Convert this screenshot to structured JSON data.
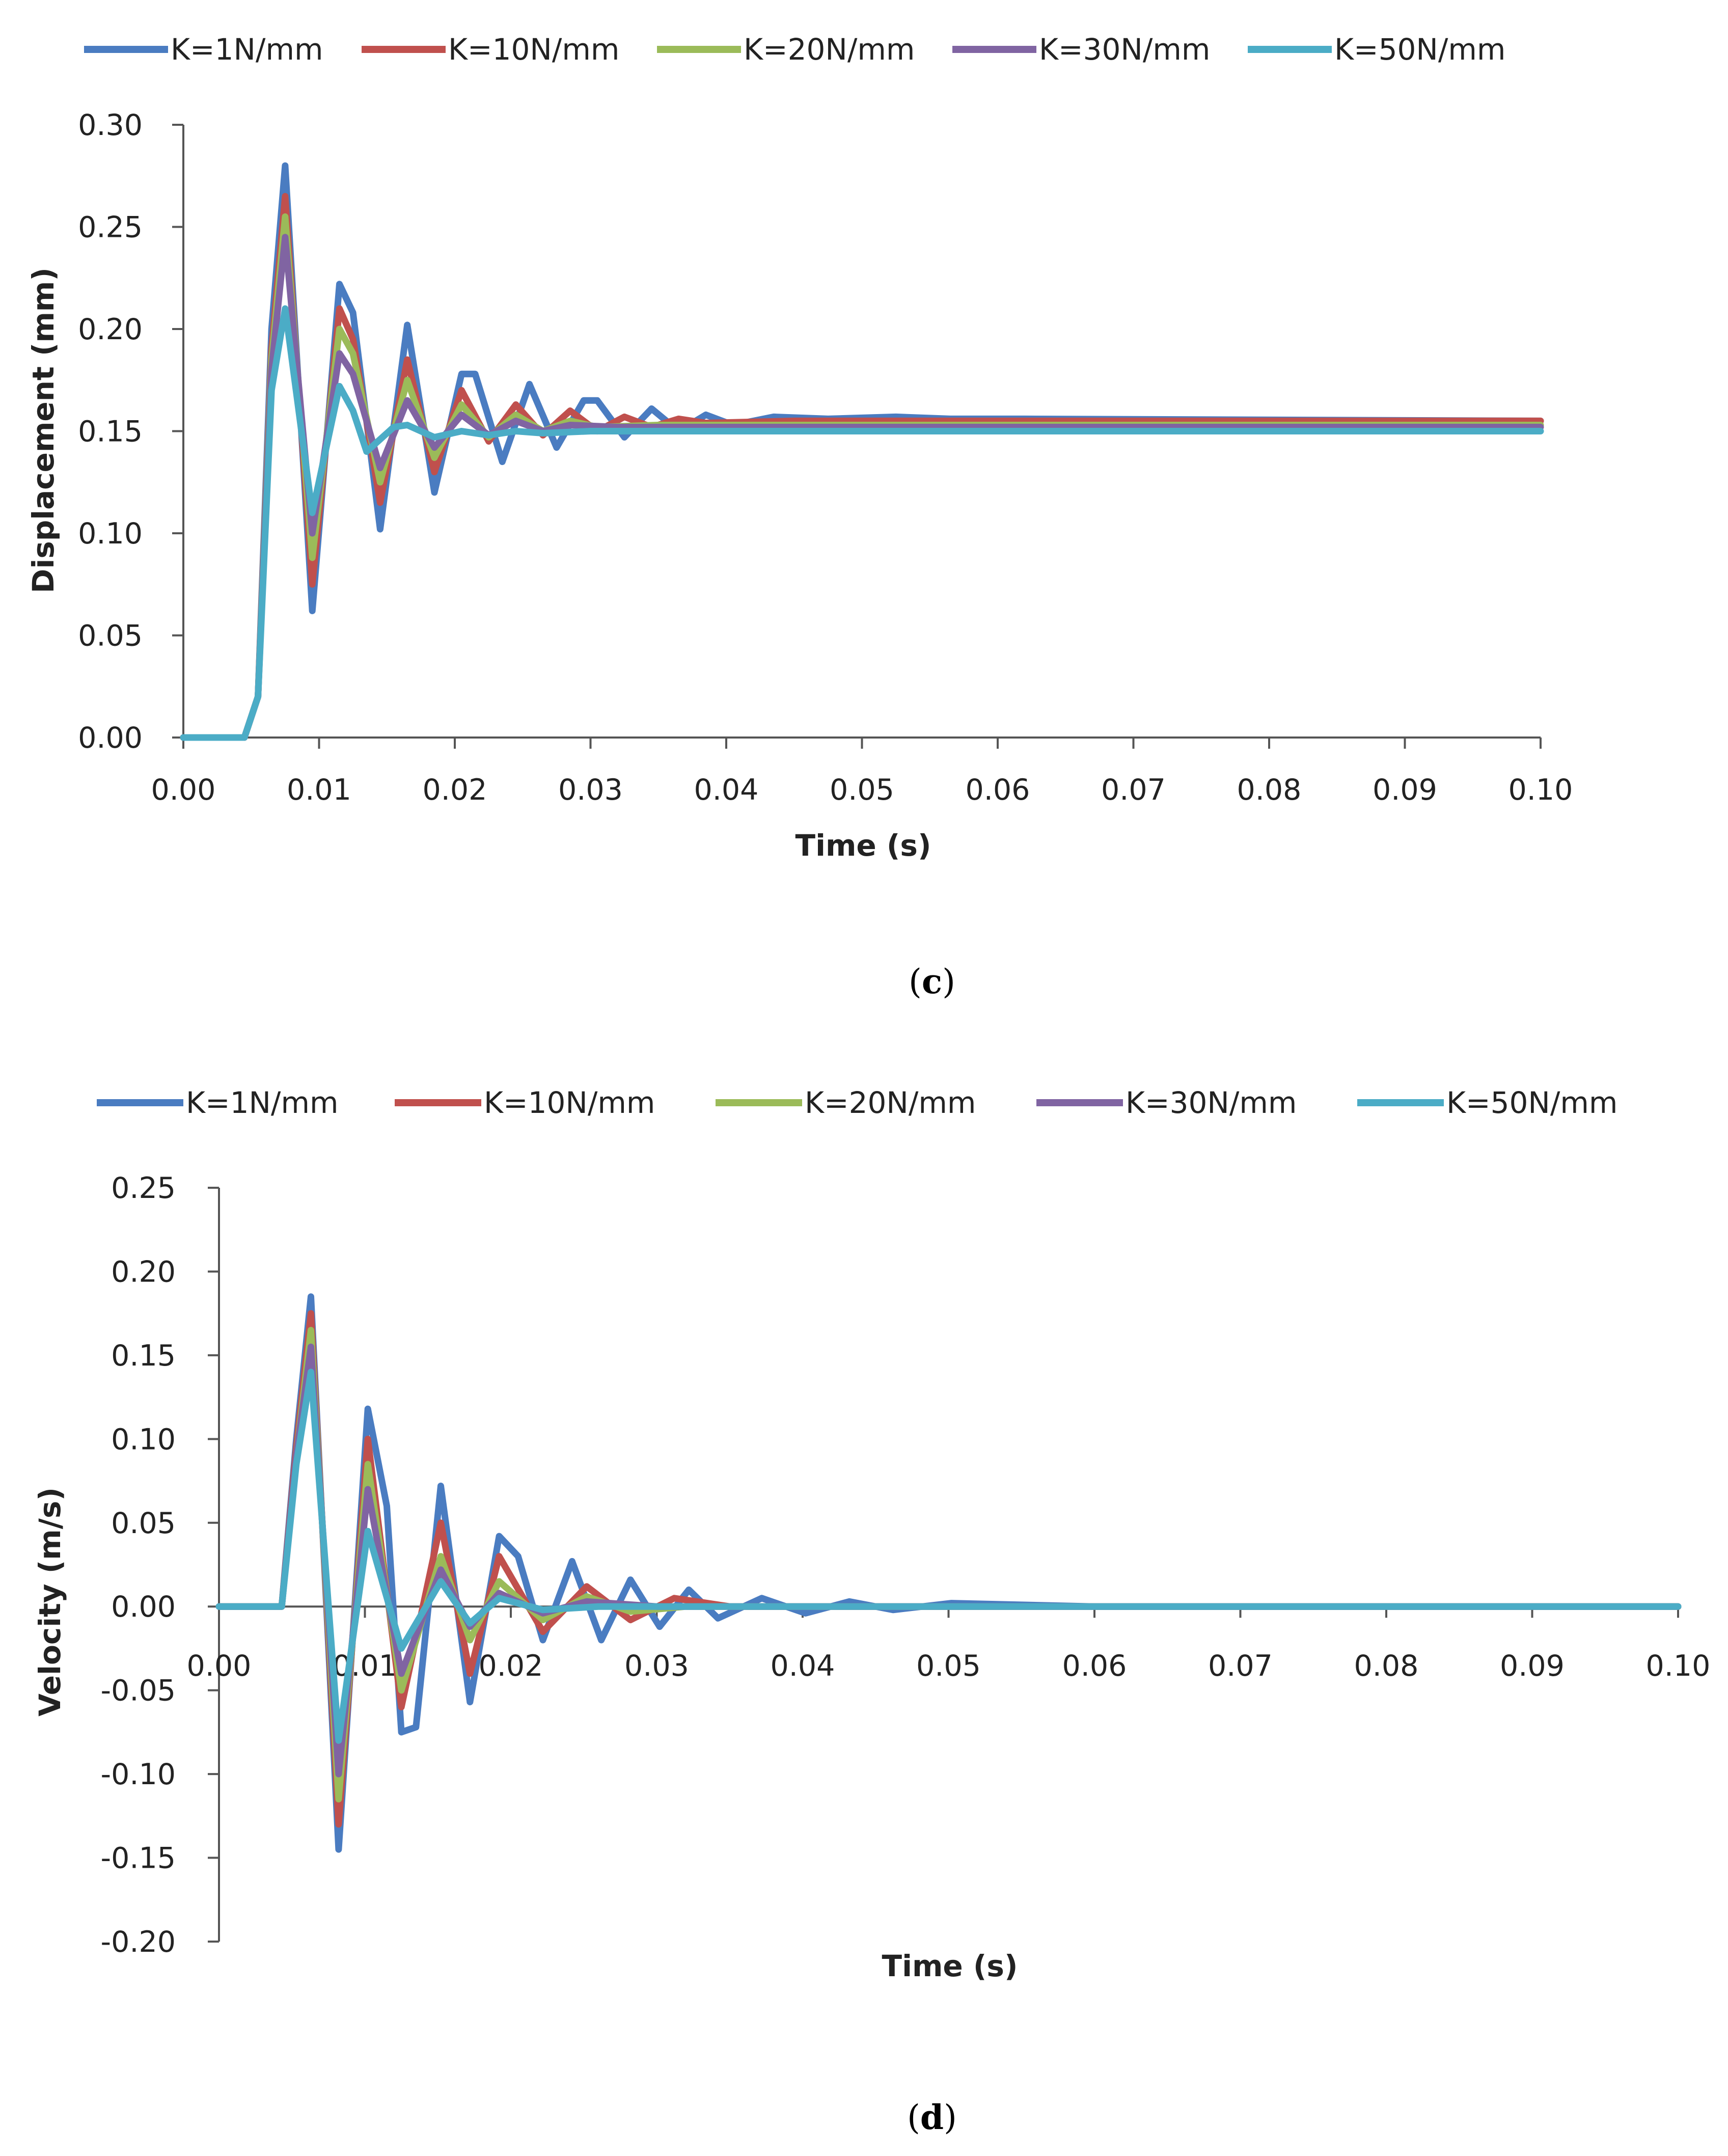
{
  "colors": {
    "K1": "#4a7cc1",
    "K10": "#c0504d",
    "K20": "#9bbb59",
    "K30": "#8064a2",
    "K50": "#4bacc6",
    "axis": "#555555",
    "text": "#222222"
  },
  "chart_data": [
    {
      "id": "c",
      "type": "line",
      "caption_letter": "c",
      "xlabel": "Time (s)",
      "ylabel": "Displacement  (mm)",
      "xlim": [
        0,
        0.1
      ],
      "ylim": [
        0,
        0.3
      ],
      "xticks": [
        "0.00",
        "0.01",
        "0.02",
        "0.03",
        "0.04",
        "0.05",
        "0.06",
        "0.07",
        "0.08",
        "0.09",
        "0.10"
      ],
      "yticks": [
        "0.00",
        "0.05",
        "0.10",
        "0.15",
        "0.20",
        "0.25",
        "0.30"
      ],
      "legend": [
        "K=1N/mm",
        "K=10N/mm",
        "K=20N/mm",
        "K=30N/mm",
        "K=50N/mm"
      ],
      "series": [
        {
          "name": "K=1N/mm",
          "color_key": "K1",
          "x": [
            0,
            0.002,
            0.0045,
            0.0055,
            0.0065,
            0.0075,
            0.0095,
            0.0115,
            0.0125,
            0.0145,
            0.0165,
            0.0185,
            0.0205,
            0.0215,
            0.0235,
            0.0255,
            0.0275,
            0.0295,
            0.0305,
            0.0325,
            0.0345,
            0.0365,
            0.0385,
            0.0405,
            0.0435,
            0.0475,
            0.0525,
            0.0565,
            0.062,
            0.1
          ],
          "y": [
            0,
            0,
            0,
            0.02,
            0.2,
            0.28,
            0.062,
            0.222,
            0.208,
            0.102,
            0.202,
            0.12,
            0.178,
            0.178,
            0.135,
            0.173,
            0.142,
            0.165,
            0.165,
            0.147,
            0.161,
            0.15,
            0.158,
            0.153,
            0.157,
            0.156,
            0.157,
            0.156,
            0.156,
            0.155
          ]
        },
        {
          "name": "K=10N/mm",
          "color_key": "K10",
          "x": [
            0,
            0.002,
            0.0045,
            0.0055,
            0.0065,
            0.0075,
            0.0095,
            0.0115,
            0.0125,
            0.0145,
            0.0165,
            0.0185,
            0.0205,
            0.0225,
            0.0245,
            0.0265,
            0.0285,
            0.0305,
            0.0325,
            0.0345,
            0.0365,
            0.0385,
            0.045,
            0.1
          ],
          "y": [
            0,
            0,
            0,
            0.02,
            0.19,
            0.265,
            0.075,
            0.21,
            0.195,
            0.115,
            0.185,
            0.13,
            0.17,
            0.145,
            0.163,
            0.148,
            0.16,
            0.15,
            0.157,
            0.152,
            0.156,
            0.154,
            0.155,
            0.155
          ]
        },
        {
          "name": "K=20N/mm",
          "color_key": "K20",
          "x": [
            0,
            0.002,
            0.0045,
            0.0055,
            0.0065,
            0.0075,
            0.0095,
            0.0115,
            0.0125,
            0.0145,
            0.0165,
            0.0185,
            0.0205,
            0.0225,
            0.0245,
            0.0265,
            0.0285,
            0.0305,
            0.035,
            0.1
          ],
          "y": [
            0,
            0,
            0,
            0.02,
            0.185,
            0.255,
            0.088,
            0.2,
            0.188,
            0.125,
            0.175,
            0.137,
            0.163,
            0.147,
            0.158,
            0.15,
            0.155,
            0.152,
            0.153,
            0.153
          ]
        },
        {
          "name": "K=30N/mm",
          "color_key": "K30",
          "x": [
            0,
            0.002,
            0.0045,
            0.0055,
            0.0065,
            0.0075,
            0.0095,
            0.0115,
            0.0125,
            0.0145,
            0.0165,
            0.0185,
            0.0205,
            0.0225,
            0.0245,
            0.0265,
            0.0285,
            0.032,
            0.1
          ],
          "y": [
            0,
            0,
            0,
            0.02,
            0.18,
            0.245,
            0.1,
            0.188,
            0.178,
            0.132,
            0.165,
            0.142,
            0.158,
            0.148,
            0.155,
            0.15,
            0.153,
            0.152,
            0.152
          ]
        },
        {
          "name": "K=50N/mm",
          "color_key": "K50",
          "x": [
            0,
            0.002,
            0.0045,
            0.0055,
            0.0065,
            0.0075,
            0.0095,
            0.0115,
            0.0125,
            0.0135,
            0.0155,
            0.0165,
            0.0185,
            0.0205,
            0.0225,
            0.0245,
            0.0265,
            0.03,
            0.1
          ],
          "y": [
            0,
            0,
            0,
            0.02,
            0.17,
            0.21,
            0.11,
            0.172,
            0.16,
            0.14,
            0.152,
            0.153,
            0.147,
            0.15,
            0.148,
            0.15,
            0.149,
            0.15,
            0.15
          ]
        }
      ]
    },
    {
      "id": "d",
      "type": "line",
      "caption_letter": "d",
      "xlabel": "Time (s)",
      "ylabel": "Velocity (m/s)",
      "xlim": [
        0,
        0.1
      ],
      "ylim": [
        -0.2,
        0.25
      ],
      "xticks": [
        "0.00",
        "0.01",
        "0.02",
        "0.03",
        "0.04",
        "0.05",
        "0.06",
        "0.07",
        "0.08",
        "0.09",
        "0.10"
      ],
      "yticks": [
        "-0.20",
        "-0.15",
        "-0.10",
        "-0.05",
        "0.00",
        "0.05",
        "0.10",
        "0.15",
        "0.20",
        "0.25"
      ],
      "legend": [
        "K=1N/mm",
        "K=10N/mm",
        "K=20N/mm",
        "K=30N/mm",
        "K=50N/mm"
      ],
      "series": [
        {
          "name": "K=1N/mm",
          "color_key": "K1",
          "x": [
            0,
            0.0043,
            0.0053,
            0.0063,
            0.0082,
            0.0102,
            0.0115,
            0.0125,
            0.0135,
            0.0152,
            0.0172,
            0.0192,
            0.0205,
            0.0222,
            0.0242,
            0.0262,
            0.0282,
            0.0302,
            0.0322,
            0.0342,
            0.0372,
            0.0402,
            0.0432,
            0.0462,
            0.0502,
            0.06,
            0.1
          ],
          "y": [
            0,
            0,
            0.1,
            0.185,
            -0.145,
            0.118,
            0.06,
            -0.075,
            -0.072,
            0.072,
            -0.057,
            0.042,
            0.03,
            -0.02,
            0.027,
            -0.02,
            0.016,
            -0.012,
            0.01,
            -0.007,
            0.005,
            -0.004,
            0.003,
            -0.002,
            0.002,
            0,
            0
          ]
        },
        {
          "name": "K=10N/mm",
          "color_key": "K10",
          "x": [
            0,
            0.0043,
            0.0053,
            0.0063,
            0.0082,
            0.0102,
            0.0125,
            0.0152,
            0.0172,
            0.0192,
            0.0222,
            0.0252,
            0.0282,
            0.0312,
            0.035,
            0.1
          ],
          "y": [
            0,
            0,
            0.095,
            0.175,
            -0.13,
            0.1,
            -0.06,
            0.05,
            -0.04,
            0.03,
            -0.015,
            0.012,
            -0.008,
            0.005,
            0,
            0
          ]
        },
        {
          "name": "K=20N/mm",
          "color_key": "K20",
          "x": [
            0,
            0.0043,
            0.0053,
            0.0063,
            0.0082,
            0.0102,
            0.0125,
            0.0152,
            0.0172,
            0.0192,
            0.0222,
            0.0252,
            0.0282,
            0.032,
            0.1
          ],
          "y": [
            0,
            0,
            0.09,
            0.165,
            -0.115,
            0.085,
            -0.05,
            0.03,
            -0.02,
            0.015,
            -0.008,
            0.006,
            -0.003,
            0,
            0
          ]
        },
        {
          "name": "K=30N/mm",
          "color_key": "K30",
          "x": [
            0,
            0.0043,
            0.0053,
            0.0063,
            0.0082,
            0.0102,
            0.0125,
            0.0152,
            0.0172,
            0.0192,
            0.0222,
            0.0252,
            0.03,
            0.1
          ],
          "y": [
            0,
            0,
            0.09,
            0.155,
            -0.1,
            0.07,
            -0.04,
            0.022,
            -0.012,
            0.008,
            -0.004,
            0.003,
            0,
            0
          ]
        },
        {
          "name": "K=50N/mm",
          "color_key": "K50",
          "x": [
            0,
            0.0043,
            0.0053,
            0.0063,
            0.0082,
            0.0102,
            0.0125,
            0.0152,
            0.0172,
            0.0192,
            0.0222,
            0.026,
            0.1
          ],
          "y": [
            0,
            0,
            0.085,
            0.14,
            -0.08,
            0.045,
            -0.025,
            0.015,
            -0.01,
            0.005,
            -0.002,
            0,
            0
          ]
        }
      ]
    }
  ]
}
